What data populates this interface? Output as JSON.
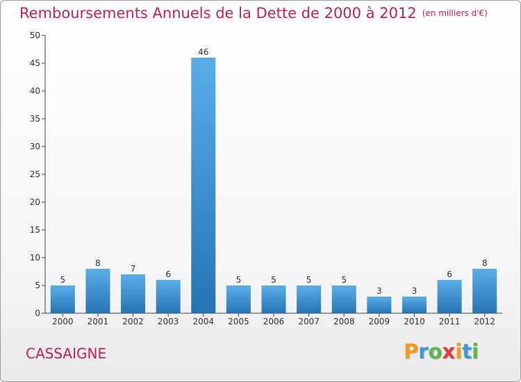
{
  "chart_data": {
    "type": "bar",
    "title": "Remboursements Annuels de la Dette de 2000 à 2012",
    "subtitle": "(en milliers d'€)",
    "categories": [
      "2000",
      "2001",
      "2002",
      "2003",
      "2004",
      "2005",
      "2006",
      "2007",
      "2008",
      "2009",
      "2010",
      "2011",
      "2012"
    ],
    "values": [
      5,
      8,
      7,
      6,
      46,
      5,
      5,
      5,
      5,
      3,
      3,
      6,
      8
    ],
    "ylim": [
      0,
      50
    ],
    "yticks": [
      0,
      5,
      10,
      15,
      20,
      25,
      30,
      35,
      40,
      45,
      50
    ],
    "grid": false,
    "bar_color_top": "#5aaee8",
    "bar_color_bottom": "#2673b4"
  },
  "footer": {
    "commune": "CASSAIGNE",
    "logo_letters": [
      {
        "char": "P",
        "color": "#f39c1e"
      },
      {
        "char": "r",
        "color": "#3a9ad9"
      },
      {
        "char": "o",
        "color": "#5bb84a"
      },
      {
        "char": "x",
        "color": "#e23b3b"
      },
      {
        "char": "i",
        "color": "#f39c1e"
      },
      {
        "char": "t",
        "color": "#3a9ad9"
      },
      {
        "char": "i",
        "color": "#5bb84a"
      }
    ]
  }
}
